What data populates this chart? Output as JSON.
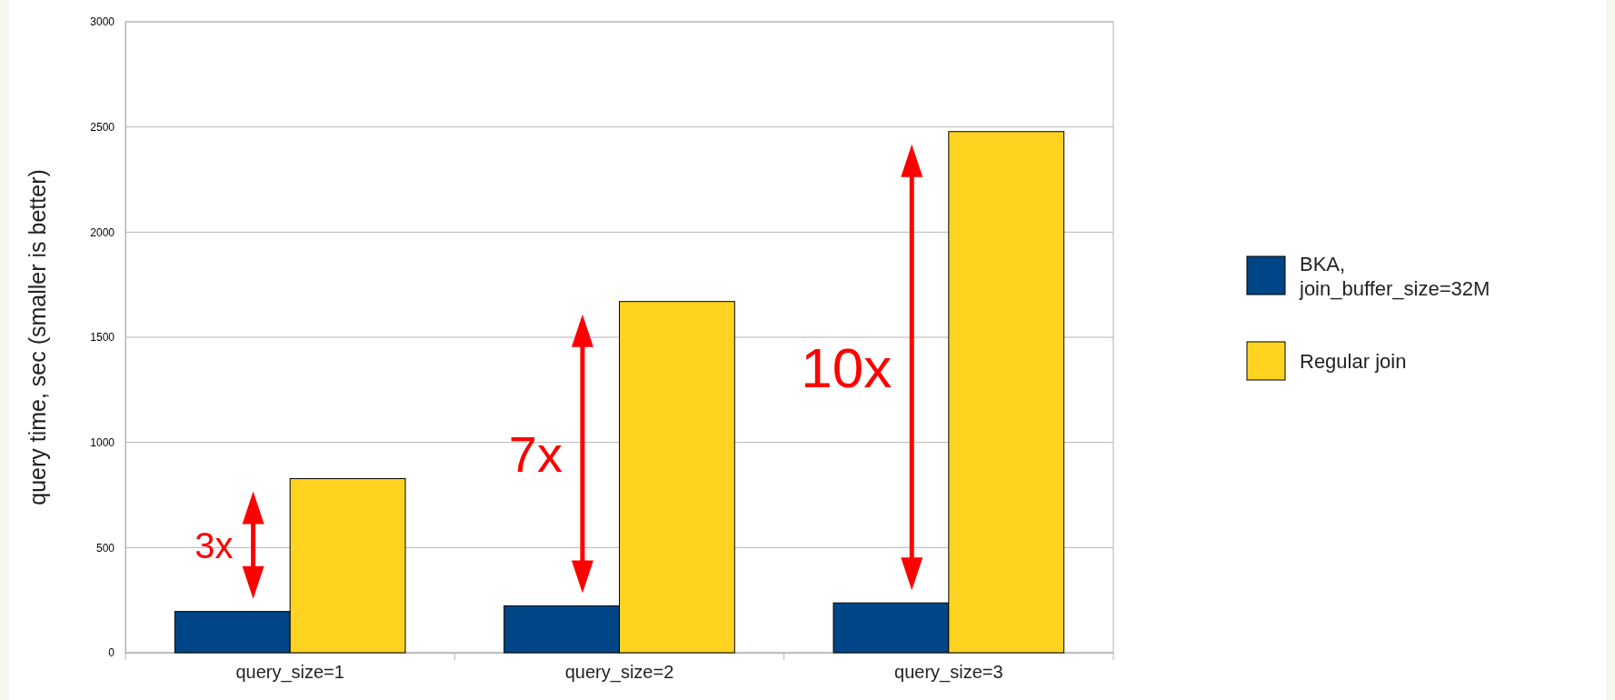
{
  "chart_data": {
    "type": "bar",
    "ylabel": "query time, sec (smaller is better)",
    "categories": [
      "query_size=1",
      "query_size=2",
      "query_size=3"
    ],
    "series": [
      {
        "name": "BKA,\njoin_buffer_size=32M",
        "color": "#004586",
        "values": [
          196,
          223,
          237
        ]
      },
      {
        "name": "Regular join",
        "color": "#ffd320",
        "values": [
          828,
          1670,
          2478
        ]
      }
    ],
    "ylim": [
      0,
      3000
    ],
    "yticks": [
      0,
      500,
      1000,
      1500,
      2000,
      2500,
      3000
    ],
    "grid": "y",
    "legend": "right",
    "annotations": [
      "3x",
      "7x",
      "10x"
    ]
  }
}
